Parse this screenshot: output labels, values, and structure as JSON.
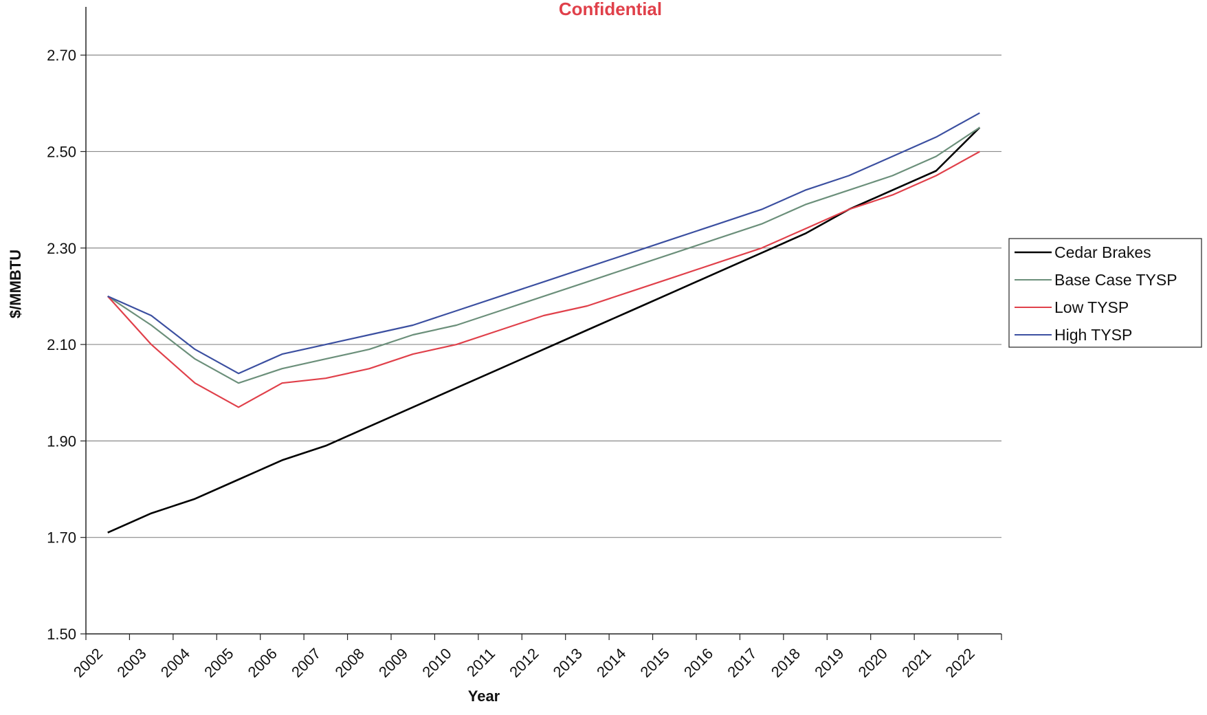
{
  "watermark": {
    "text": "Confidential",
    "color": "#e0404a"
  },
  "chart_data": {
    "type": "line",
    "title": "",
    "xlabel": "Year",
    "ylabel": "$/MMBTU",
    "ylim": [
      1.5,
      2.8
    ],
    "yticks": [
      "1.50",
      "1.70",
      "1.90",
      "2.10",
      "2.30",
      "2.50",
      "2.70"
    ],
    "ytick_values": [
      1.5,
      1.7,
      1.9,
      2.1,
      2.3,
      2.5,
      2.7
    ],
    "grid": "horizontal",
    "legend_position": "right",
    "categories": [
      "2002",
      "2003",
      "2004",
      "2005",
      "2006",
      "2007",
      "2008",
      "2009",
      "2010",
      "2011",
      "2012",
      "2013",
      "2014",
      "2015",
      "2016",
      "2017",
      "2018",
      "2019",
      "2020",
      "2021",
      "2022"
    ],
    "series": [
      {
        "name": "Cedar Brakes",
        "color": "#000000",
        "values": [
          1.71,
          1.75,
          1.78,
          1.82,
          1.86,
          1.89,
          1.93,
          1.97,
          2.01,
          2.05,
          2.09,
          2.13,
          2.17,
          2.21,
          2.25,
          2.29,
          2.33,
          2.38,
          2.42,
          2.46,
          2.55
        ]
      },
      {
        "name": "Base Case TYSP",
        "color": "#6b8f7a",
        "values": [
          2.2,
          2.14,
          2.07,
          2.02,
          2.05,
          2.07,
          2.09,
          2.12,
          2.14,
          2.17,
          2.2,
          2.23,
          2.26,
          2.29,
          2.32,
          2.35,
          2.39,
          2.42,
          2.45,
          2.49,
          2.55
        ]
      },
      {
        "name": "Low TYSP",
        "color": "#e0404a",
        "values": [
          2.2,
          2.1,
          2.02,
          1.97,
          2.02,
          2.03,
          2.05,
          2.08,
          2.1,
          2.13,
          2.16,
          2.18,
          2.21,
          2.24,
          2.27,
          2.3,
          2.34,
          2.38,
          2.41,
          2.45,
          2.5
        ]
      },
      {
        "name": "High TYSP",
        "color": "#3b4fa0",
        "values": [
          2.2,
          2.16,
          2.09,
          2.04,
          2.08,
          2.1,
          2.12,
          2.14,
          2.17,
          2.2,
          2.23,
          2.26,
          2.29,
          2.32,
          2.35,
          2.38,
          2.42,
          2.45,
          2.49,
          2.53,
          2.58
        ]
      }
    ]
  }
}
